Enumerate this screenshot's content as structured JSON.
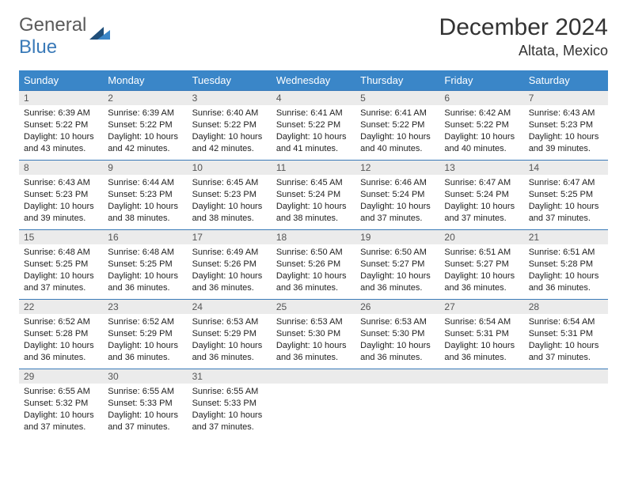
{
  "logo": {
    "text_gray": "General",
    "text_blue": "Blue"
  },
  "title": "December 2024",
  "location": "Altata, Mexico",
  "colors": {
    "header_bg": "#3a86c8",
    "header_fg": "#ffffff",
    "band_bg": "#ebebeb",
    "band_border": "#3a7ab8",
    "logo_gray": "#5a5a5a",
    "logo_blue": "#3a7ab8",
    "triangle_dark": "#1f4e79",
    "triangle_light": "#3a86c8"
  },
  "day_headers": [
    "Sunday",
    "Monday",
    "Tuesday",
    "Wednesday",
    "Thursday",
    "Friday",
    "Saturday"
  ],
  "weeks": [
    [
      {
        "n": "1",
        "sunrise": "6:39 AM",
        "sunset": "5:22 PM",
        "daylight": "10 hours and 43 minutes."
      },
      {
        "n": "2",
        "sunrise": "6:39 AM",
        "sunset": "5:22 PM",
        "daylight": "10 hours and 42 minutes."
      },
      {
        "n": "3",
        "sunrise": "6:40 AM",
        "sunset": "5:22 PM",
        "daylight": "10 hours and 42 minutes."
      },
      {
        "n": "4",
        "sunrise": "6:41 AM",
        "sunset": "5:22 PM",
        "daylight": "10 hours and 41 minutes."
      },
      {
        "n": "5",
        "sunrise": "6:41 AM",
        "sunset": "5:22 PM",
        "daylight": "10 hours and 40 minutes."
      },
      {
        "n": "6",
        "sunrise": "6:42 AM",
        "sunset": "5:22 PM",
        "daylight": "10 hours and 40 minutes."
      },
      {
        "n": "7",
        "sunrise": "6:43 AM",
        "sunset": "5:23 PM",
        "daylight": "10 hours and 39 minutes."
      }
    ],
    [
      {
        "n": "8",
        "sunrise": "6:43 AM",
        "sunset": "5:23 PM",
        "daylight": "10 hours and 39 minutes."
      },
      {
        "n": "9",
        "sunrise": "6:44 AM",
        "sunset": "5:23 PM",
        "daylight": "10 hours and 38 minutes."
      },
      {
        "n": "10",
        "sunrise": "6:45 AM",
        "sunset": "5:23 PM",
        "daylight": "10 hours and 38 minutes."
      },
      {
        "n": "11",
        "sunrise": "6:45 AM",
        "sunset": "5:24 PM",
        "daylight": "10 hours and 38 minutes."
      },
      {
        "n": "12",
        "sunrise": "6:46 AM",
        "sunset": "5:24 PM",
        "daylight": "10 hours and 37 minutes."
      },
      {
        "n": "13",
        "sunrise": "6:47 AM",
        "sunset": "5:24 PM",
        "daylight": "10 hours and 37 minutes."
      },
      {
        "n": "14",
        "sunrise": "6:47 AM",
        "sunset": "5:25 PM",
        "daylight": "10 hours and 37 minutes."
      }
    ],
    [
      {
        "n": "15",
        "sunrise": "6:48 AM",
        "sunset": "5:25 PM",
        "daylight": "10 hours and 37 minutes."
      },
      {
        "n": "16",
        "sunrise": "6:48 AM",
        "sunset": "5:25 PM",
        "daylight": "10 hours and 36 minutes."
      },
      {
        "n": "17",
        "sunrise": "6:49 AM",
        "sunset": "5:26 PM",
        "daylight": "10 hours and 36 minutes."
      },
      {
        "n": "18",
        "sunrise": "6:50 AM",
        "sunset": "5:26 PM",
        "daylight": "10 hours and 36 minutes."
      },
      {
        "n": "19",
        "sunrise": "6:50 AM",
        "sunset": "5:27 PM",
        "daylight": "10 hours and 36 minutes."
      },
      {
        "n": "20",
        "sunrise": "6:51 AM",
        "sunset": "5:27 PM",
        "daylight": "10 hours and 36 minutes."
      },
      {
        "n": "21",
        "sunrise": "6:51 AM",
        "sunset": "5:28 PM",
        "daylight": "10 hours and 36 minutes."
      }
    ],
    [
      {
        "n": "22",
        "sunrise": "6:52 AM",
        "sunset": "5:28 PM",
        "daylight": "10 hours and 36 minutes."
      },
      {
        "n": "23",
        "sunrise": "6:52 AM",
        "sunset": "5:29 PM",
        "daylight": "10 hours and 36 minutes."
      },
      {
        "n": "24",
        "sunrise": "6:53 AM",
        "sunset": "5:29 PM",
        "daylight": "10 hours and 36 minutes."
      },
      {
        "n": "25",
        "sunrise": "6:53 AM",
        "sunset": "5:30 PM",
        "daylight": "10 hours and 36 minutes."
      },
      {
        "n": "26",
        "sunrise": "6:53 AM",
        "sunset": "5:30 PM",
        "daylight": "10 hours and 36 minutes."
      },
      {
        "n": "27",
        "sunrise": "6:54 AM",
        "sunset": "5:31 PM",
        "daylight": "10 hours and 36 minutes."
      },
      {
        "n": "28",
        "sunrise": "6:54 AM",
        "sunset": "5:31 PM",
        "daylight": "10 hours and 37 minutes."
      }
    ],
    [
      {
        "n": "29",
        "sunrise": "6:55 AM",
        "sunset": "5:32 PM",
        "daylight": "10 hours and 37 minutes."
      },
      {
        "n": "30",
        "sunrise": "6:55 AM",
        "sunset": "5:33 PM",
        "daylight": "10 hours and 37 minutes."
      },
      {
        "n": "31",
        "sunrise": "6:55 AM",
        "sunset": "5:33 PM",
        "daylight": "10 hours and 37 minutes."
      },
      null,
      null,
      null,
      null
    ]
  ],
  "labels": {
    "sunrise": "Sunrise:",
    "sunset": "Sunset:",
    "daylight": "Daylight:"
  }
}
